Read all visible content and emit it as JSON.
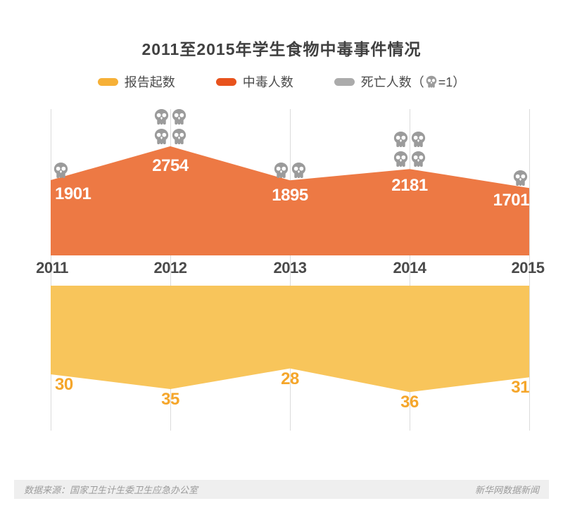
{
  "title": "2011至2015年学生食物中毒事件情况",
  "legend": {
    "items": [
      {
        "label": "报告起数",
        "color": "#F6B037"
      },
      {
        "label": "中毒人数",
        "color": "#E8531D"
      },
      {
        "label_prefix": "死亡人数（",
        "label_suffix": "=1）",
        "color": "#ABABAB",
        "icon": "skull-icon"
      }
    ]
  },
  "chart_data": {
    "type": "area",
    "categories": [
      "2011",
      "2012",
      "2013",
      "2014",
      "2015"
    ],
    "series": [
      {
        "name": "报告起数",
        "values": [
          30,
          35,
          28,
          36,
          31
        ],
        "color": "#F8C55B",
        "label_color": "#F5A62B",
        "orientation": "hangs-down-from-top"
      },
      {
        "name": "中毒人数",
        "values": [
          1901,
          2754,
          1895,
          2181,
          1701
        ],
        "color": "#ED7944",
        "label_color": "#FFFFFF",
        "orientation": "rises-from-baseline"
      },
      {
        "name": "死亡人数",
        "values": [
          1,
          4,
          2,
          4,
          1
        ],
        "icon": "skull-icon",
        "unit_per_icon": 1,
        "color": "#9B9B9B"
      }
    ],
    "title": "2011至2015年学生食物中毒事件情况",
    "xlabel": "",
    "ylabel": "",
    "grid": "vertical-gridlines-on",
    "legend_position": "top-center"
  },
  "footer": {
    "source": "数据来源：国家卫生计生委卫生应急办公室",
    "credit": "新华网数据新闻"
  }
}
